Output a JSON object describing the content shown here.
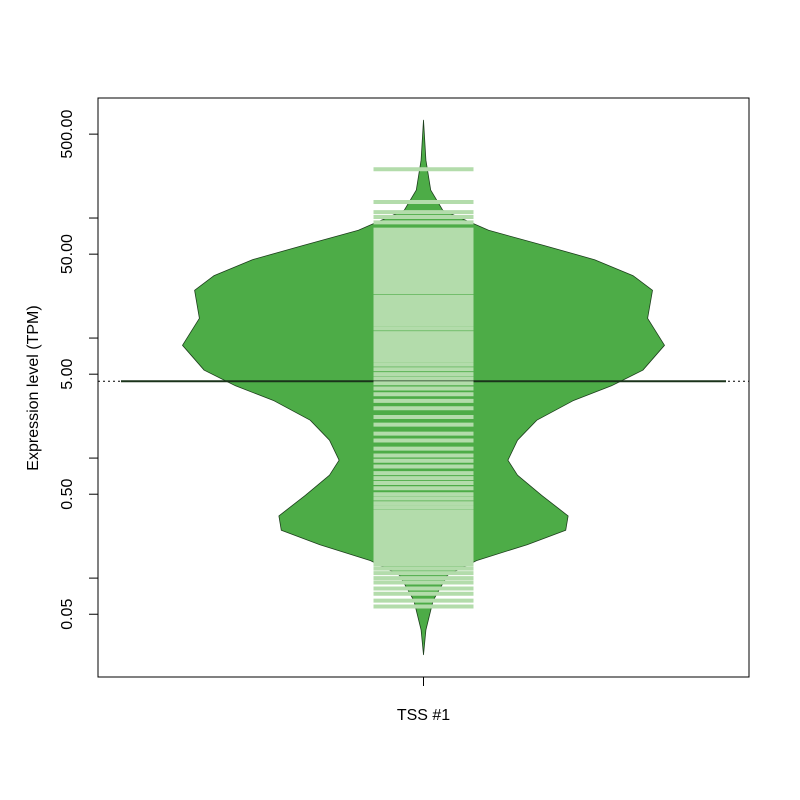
{
  "chart_data": {
    "type": "beanplot",
    "y_label": "Expression level (TPM)",
    "categories": [
      "TSS #1"
    ],
    "log_y": true,
    "ylim": [
      0.015,
      1000
    ],
    "yticks": [
      {
        "value": 0.05,
        "label": "0.05"
      },
      {
        "value": 0.5,
        "label": "0.50"
      },
      {
        "value": 5,
        "label": "5.00"
      },
      {
        "value": 50,
        "label": "50.00"
      },
      {
        "value": 500,
        "label": "500.00"
      }
    ],
    "minor_yticks": [
      0.1,
      1,
      10,
      100
    ],
    "color": "#4dac47",
    "beanline_color": "#b3dcab",
    "density": {
      "y": [
        654,
        303,
        171,
        116,
        79,
        59,
        45,
        33,
        25,
        14.6,
        8.7,
        5.4,
        4.0,
        3.0,
        2.07,
        1.41,
        0.96,
        0.72,
        0.49,
        0.33,
        0.25,
        0.19,
        0.14,
        0.106,
        0.065,
        0.037,
        0.023
      ],
      "width": [
        0,
        0.01,
        0.03,
        0.08,
        0.27,
        0.5,
        0.71,
        0.87,
        0.95,
        0.93,
        1.0,
        0.91,
        0.78,
        0.62,
        0.47,
        0.39,
        0.35,
        0.39,
        0.49,
        0.6,
        0.59,
        0.43,
        0.22,
        0.1,
        0.04,
        0.01,
        0
      ]
    },
    "points": [
      255,
      136,
      112,
      102,
      92,
      80,
      75,
      70,
      66,
      62,
      58,
      55,
      52,
      49,
      46,
      43,
      40,
      38,
      36,
      34,
      32,
      30,
      28,
      27,
      26,
      25,
      24,
      22,
      21,
      20,
      19,
      18,
      17,
      16,
      15,
      14,
      13,
      12,
      11,
      10.5,
      10,
      9.5,
      9,
      8.5,
      8,
      7.5,
      7,
      6.5,
      6,
      5.5,
      5,
      4.6,
      4.2,
      3.8,
      3.4,
      3,
      2.6,
      2.2,
      1.9,
      1.6,
      1.4,
      1.2,
      1.05,
      0.95,
      0.85,
      0.75,
      0.68,
      0.62,
      0.56,
      0.5,
      0.46,
      0.42,
      0.39,
      0.36,
      0.34,
      0.32,
      0.3,
      0.28,
      0.26,
      0.25,
      0.24,
      0.23,
      0.22,
      0.21,
      0.2,
      0.19,
      0.18,
      0.17,
      0.16,
      0.15,
      0.14,
      0.13,
      0.12,
      0.11,
      0.1,
      0.092,
      0.082,
      0.074,
      0.065,
      0.058
    ],
    "bean_mean": 4.37,
    "overall_mean": 4.37
  }
}
